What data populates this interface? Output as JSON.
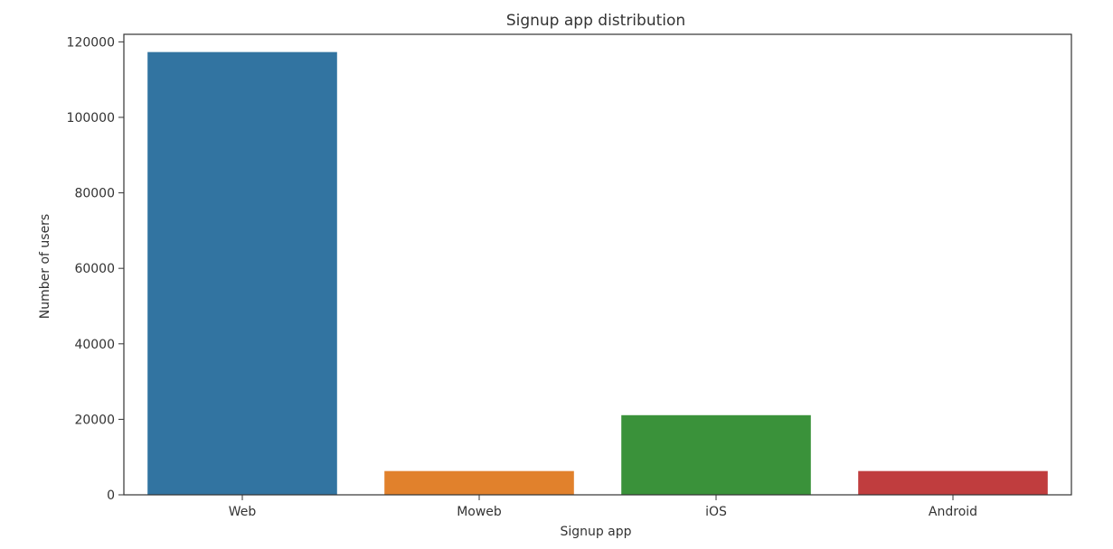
{
  "chart_data": {
    "type": "bar",
    "title": "Signup app distribution",
    "xlabel": "Signup app",
    "ylabel": "Number of users",
    "categories": [
      "Web",
      "Moweb",
      "iOS",
      "Android"
    ],
    "values": [
      117300,
      6300,
      21100,
      6300
    ],
    "colors": [
      "#3274a1",
      "#e1812c",
      "#3a923a",
      "#c03d3e"
    ],
    "ylim": [
      0,
      122000
    ],
    "yticks": [
      0,
      20000,
      40000,
      60000,
      80000,
      100000,
      120000
    ],
    "grid": false,
    "legend": "none"
  }
}
